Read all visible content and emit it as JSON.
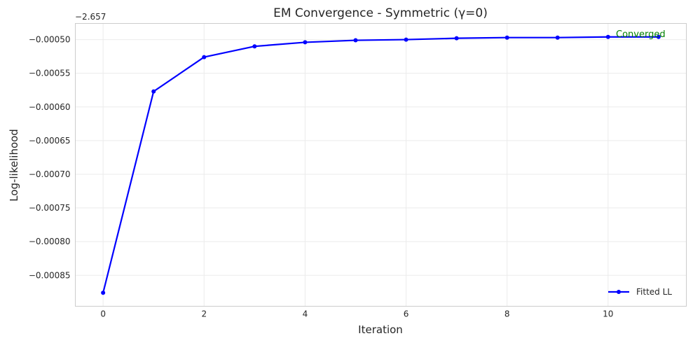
{
  "chart_data": {
    "type": "line",
    "title": "EM Convergence - Symmetric (γ=0)",
    "xlabel": "Iteration",
    "ylabel": "Log-likelihood",
    "y_offset_label": "−2.657",
    "y_offset": -2.657,
    "x_ticks": [
      "0",
      "2",
      "4",
      "6",
      "8",
      "10"
    ],
    "y_ticks": [
      "−0.00050",
      "−0.00055",
      "−0.00060",
      "−0.00065",
      "−0.00070",
      "−0.00075",
      "−0.00080",
      "−0.00085"
    ],
    "y_tick_values": [
      -0.0005,
      -0.00055,
      -0.0006,
      -0.00065,
      -0.0007,
      -0.00075,
      -0.0008,
      -0.00085
    ],
    "xlim": [
      -0.55,
      11.55
    ],
    "ylim": [
      -0.000896,
      -0.000476
    ],
    "grid": true,
    "legend_position": "lower right",
    "series": [
      {
        "name": "Fitted LL",
        "color": "#0000ff",
        "marker": "circle",
        "x": [
          0,
          1,
          2,
          3,
          4,
          5,
          6,
          7,
          8,
          9,
          10,
          11
        ],
        "values": [
          -0.000876,
          -0.000577,
          -0.000526,
          -0.00051,
          -0.000504,
          -0.000501,
          -0.0005,
          -0.000498,
          -0.000497,
          -0.000497,
          -0.000496,
          -0.000496
        ]
      }
    ],
    "annotations": [
      {
        "text": "Converged",
        "x": 11,
        "y": -0.000496,
        "color": "#008000"
      }
    ]
  }
}
